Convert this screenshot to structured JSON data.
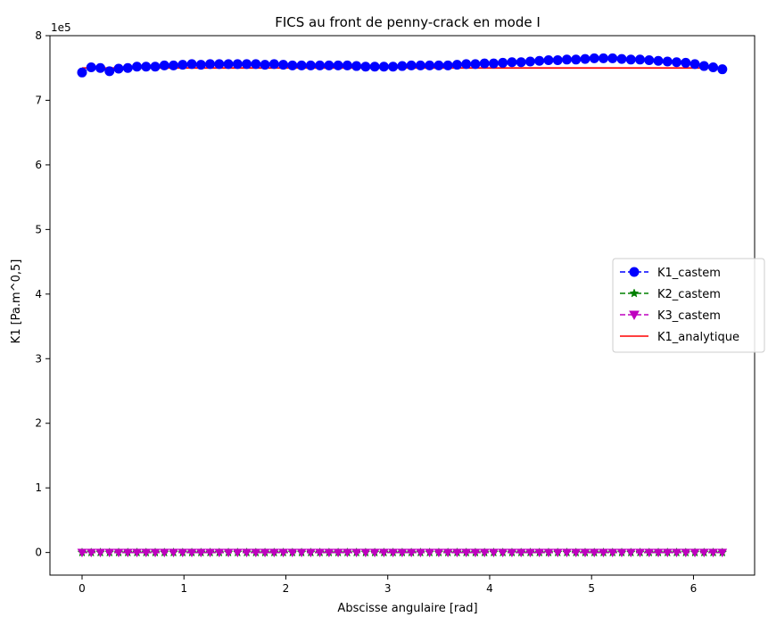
{
  "chart_data": {
    "type": "line",
    "title": "FICS au front de penny-crack en mode I",
    "xlabel": "Abscisse angulaire [rad]",
    "ylabel": "K1 [Pa.m^0,5]",
    "y_offset_label": "1e5",
    "y_scale": 100000,
    "xlim": [
      -0.315,
      6.6
    ],
    "ylim": [
      -35000,
      800000
    ],
    "x_ticks": [
      0,
      1,
      2,
      3,
      4,
      5,
      6
    ],
    "x_tick_labels": [
      "0",
      "1",
      "2",
      "3",
      "4",
      "5",
      "6"
    ],
    "y_ticks": [
      0,
      100000,
      200000,
      300000,
      400000,
      500000,
      600000,
      700000,
      800000
    ],
    "y_tick_labels": [
      "0",
      "1",
      "2",
      "3",
      "4",
      "5",
      "6",
      "7",
      "8"
    ],
    "grid": false,
    "legend_position": "center right",
    "x_start": 0,
    "x_end": 6.2832,
    "series": [
      {
        "name": "K1_castem",
        "color": "#0000ff",
        "style": "dashed",
        "marker": "circle",
        "values": [
          743000,
          751000,
          750000,
          745000,
          749000,
          750000,
          752000,
          752000,
          752000,
          754000,
          754000,
          755000,
          756000,
          755000,
          756000,
          756000,
          756000,
          756000,
          756000,
          756000,
          755000,
          756000,
          755000,
          754000,
          754000,
          754000,
          754000,
          754000,
          754000,
          754000,
          753000,
          752000,
          752000,
          752000,
          752000,
          753000,
          754000,
          754000,
          754000,
          754000,
          754000,
          755000,
          756000,
          756000,
          757000,
          757000,
          758000,
          759000,
          759000,
          760000,
          761000,
          762000,
          762000,
          763000,
          763000,
          764000,
          765000,
          765000,
          765000,
          764000,
          763000,
          763000,
          762000,
          761000,
          760000,
          759000,
          758000,
          756000,
          753000,
          751000,
          748000
        ]
      },
      {
        "name": "K2_castem",
        "color": "#008000",
        "style": "dashed",
        "marker": "star",
        "constant_value": 0
      },
      {
        "name": "K3_castem",
        "color": "#bf00bf",
        "style": "dashed",
        "marker": "triangle-down",
        "constant_value": 0
      },
      {
        "name": "K1_analytique",
        "color": "#ff0000",
        "style": "solid",
        "marker": "none",
        "constant_value": 750000
      }
    ]
  }
}
